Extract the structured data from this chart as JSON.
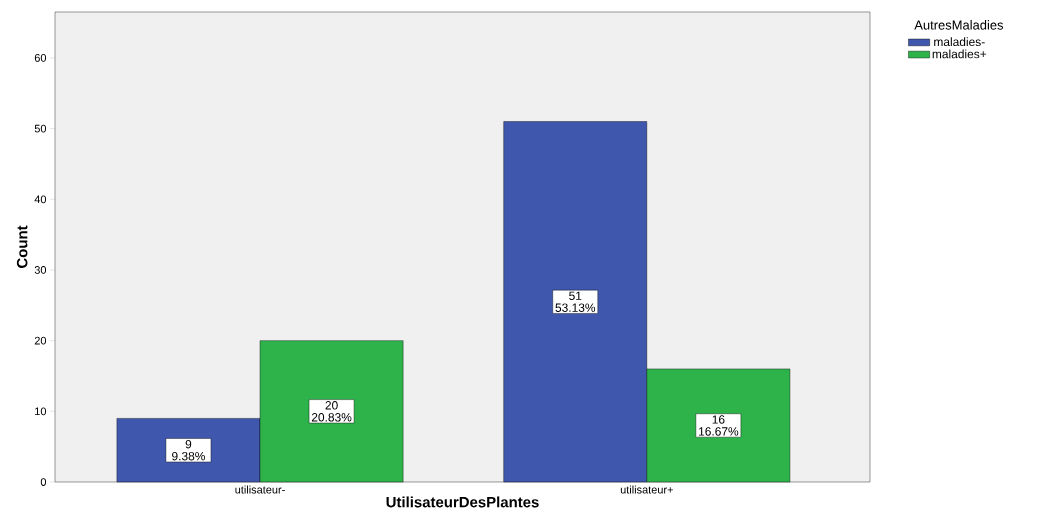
{
  "chart_data": {
    "type": "bar",
    "xlabel": "UtilisateurDesPlantes",
    "ylabel": "Count",
    "legend_title": "AutresMaladies",
    "categories": [
      "utilisateur-",
      "utilisateur+"
    ],
    "series": [
      {
        "name": "maladies-",
        "color": "#3f58ad",
        "values": [
          9,
          51
        ],
        "value_labels": [
          "9 9.38%",
          "51 53.13%"
        ]
      },
      {
        "name": "maladies+",
        "color": "#2db34a",
        "values": [
          20,
          16
        ],
        "value_labels": [
          "20 20.83%",
          "16 16.67%"
        ]
      }
    ],
    "ylim": [
      0,
      66.5
    ],
    "yticks": [
      0,
      10,
      20,
      30,
      40,
      50,
      60
    ],
    "legend": "top right"
  }
}
